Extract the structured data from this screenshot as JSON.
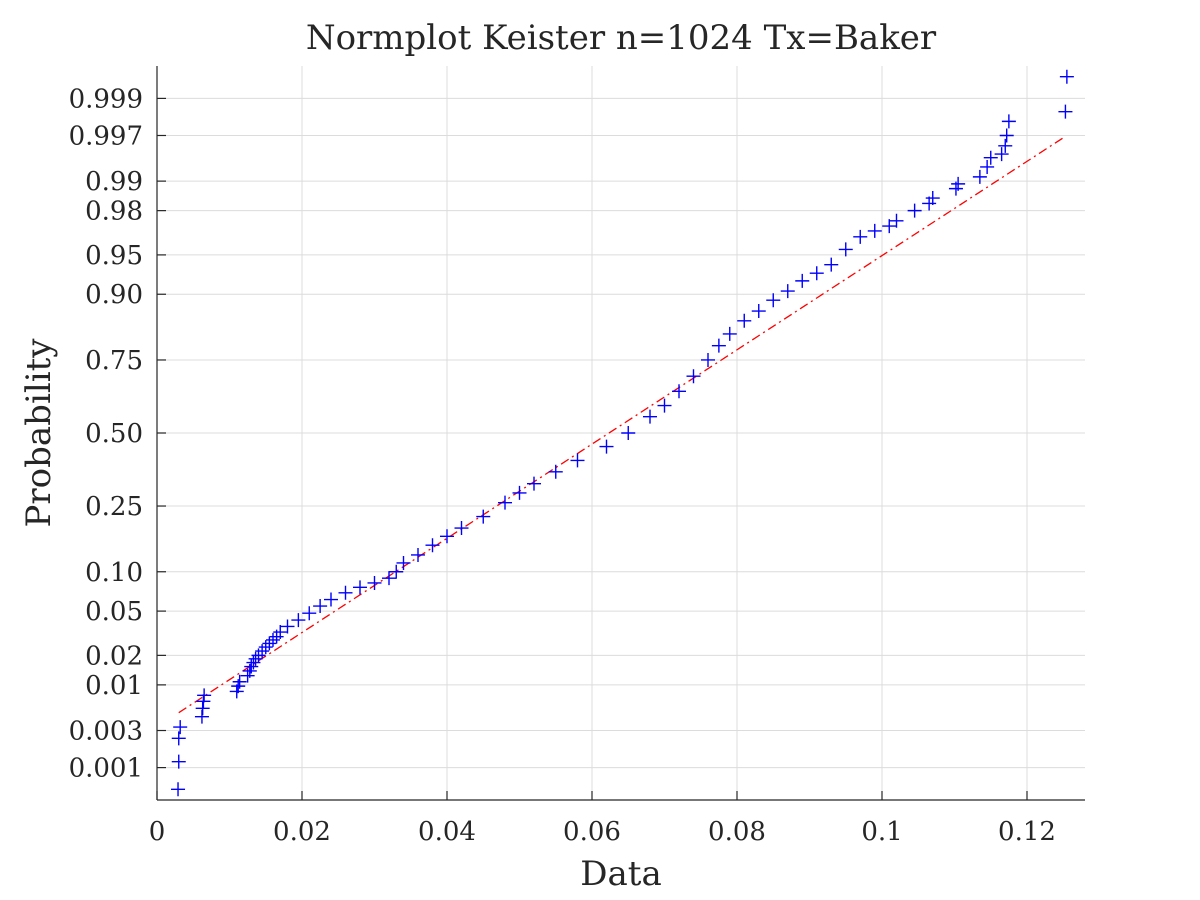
{
  "chart_data": {
    "type": "scatter",
    "title": "Normplot Keister n=1024 Tx=Baker",
    "xlabel": "Data",
    "ylabel": "Probability",
    "xlim": [
      0,
      0.128
    ],
    "x_ticks": [
      0,
      0.02,
      0.04,
      0.06,
      0.08,
      0.1,
      0.12
    ],
    "x_tick_labels": [
      "0",
      "0.02",
      "0.04",
      "0.06",
      "0.08",
      "0.1",
      "0.12"
    ],
    "y_scale": "normal-probability",
    "ylim": [
      0.00035,
      0.99965
    ],
    "y_ticks": [
      0.001,
      0.003,
      0.01,
      0.02,
      0.05,
      0.1,
      0.25,
      0.5,
      0.75,
      0.9,
      0.95,
      0.98,
      0.99,
      0.997,
      0.999
    ],
    "y_tick_labels": [
      "0.001",
      "0.003",
      "0.01",
      "0.02",
      "0.05",
      "0.10",
      "0.25",
      "0.50",
      "0.75",
      "0.90",
      "0.95",
      "0.98",
      "0.99",
      "0.997",
      "0.999"
    ],
    "grid": true,
    "n": 1024,
    "marker": "+",
    "marker_color": "#0000ff",
    "fit_line_color": "#ff0000",
    "fit_line_style": "dash-dot",
    "fit_line": {
      "x": [
        0.003,
        0.125
      ],
      "p": [
        0.0049,
        0.9968
      ]
    },
    "series": [
      {
        "values_x": [
          0.0029,
          0.003,
          0.003,
          0.0032,
          0.0062,
          0.0063,
          0.0064,
          0.0065,
          0.011,
          0.0112,
          0.0114,
          0.0125,
          0.0128,
          0.013,
          0.0133,
          0.0136,
          0.014,
          0.0145,
          0.015,
          0.0155,
          0.016,
          0.0165,
          0.017,
          0.018,
          0.0195,
          0.021,
          0.0225,
          0.024,
          0.026,
          0.028,
          0.03,
          0.032,
          0.033,
          0.034,
          0.036,
          0.038,
          0.04,
          0.042,
          0.045,
          0.048,
          0.05,
          0.052,
          0.055,
          0.058,
          0.062,
          0.065,
          0.068,
          0.07,
          0.072,
          0.074,
          0.076,
          0.0775,
          0.079,
          0.081,
          0.083,
          0.085,
          0.087,
          0.089,
          0.091,
          0.093,
          0.095,
          0.097,
          0.099,
          0.101,
          0.102,
          0.1045,
          0.1065,
          0.107,
          0.1102,
          0.1105,
          0.1135,
          0.1145,
          0.115,
          0.1165,
          0.117,
          0.1172,
          0.1175,
          0.1253,
          0.1255
        ],
        "values_p": [
          0.0005,
          0.0012,
          0.0024,
          0.0033,
          0.0044,
          0.0055,
          0.0066,
          0.0077,
          0.0085,
          0.0097,
          0.0108,
          0.0125,
          0.014,
          0.0155,
          0.017,
          0.0185,
          0.02,
          0.022,
          0.024,
          0.026,
          0.028,
          0.03,
          0.033,
          0.037,
          0.042,
          0.048,
          0.055,
          0.062,
          0.07,
          0.077,
          0.083,
          0.09,
          0.1,
          0.115,
          0.13,
          0.15,
          0.17,
          0.19,
          0.22,
          0.26,
          0.29,
          0.32,
          0.36,
          0.4,
          0.45,
          0.5,
          0.56,
          0.6,
          0.65,
          0.7,
          0.75,
          0.79,
          0.82,
          0.85,
          0.87,
          0.89,
          0.905,
          0.92,
          0.93,
          0.94,
          0.955,
          0.965,
          0.969,
          0.972,
          0.975,
          0.98,
          0.983,
          0.985,
          0.988,
          0.9893,
          0.991,
          0.993,
          0.9945,
          0.995,
          0.996,
          0.997,
          0.998,
          0.9985,
          0.9995
        ]
      }
    ]
  }
}
